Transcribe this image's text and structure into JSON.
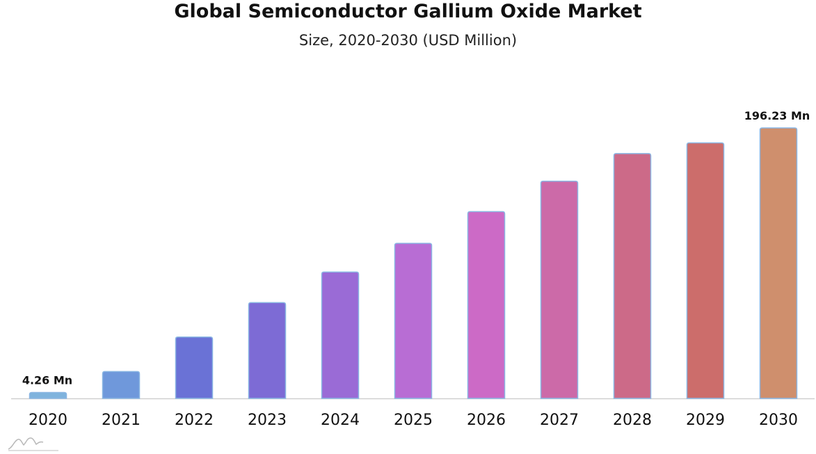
{
  "header": {
    "title": "Global Semiconductor Gallium Oxide Market",
    "subtitle": "Size, 2020-2030 (USD Million)"
  },
  "chart_data": {
    "type": "bar",
    "title": "Global Semiconductor Gallium Oxide Market",
    "subtitle": "Size, 2020-2030 (USD Million)",
    "categories": [
      "2020",
      "2021",
      "2022",
      "2023",
      "2024",
      "2025",
      "2026",
      "2027",
      "2028",
      "2029",
      "2030"
    ],
    "values": [
      4.26,
      19.5,
      44.5,
      69.5,
      91.7,
      112.5,
      135.5,
      157.6,
      177.6,
      185.4,
      196.23
    ],
    "value_labels": [
      "4.26 Mn",
      "",
      "",
      "",
      "",
      "",
      "",
      "",
      "",
      "",
      "196.23 Mn"
    ],
    "unit": "USD Million",
    "ylim": [
      0,
      196.23
    ],
    "grid": false,
    "legend": "none",
    "colors": [
      "#7fb3dd",
      "#6f98db",
      "#6a72d6",
      "#7d6bd5",
      "#9a6bd6",
      "#b86dd4",
      "#cc6ac6",
      "#cc6aa8",
      "#cc6a88",
      "#cc6d6b",
      "#cf8f6d"
    ],
    "bar_outline_color": "#8ab6e3",
    "baseline_color": "#cfcfcf"
  }
}
